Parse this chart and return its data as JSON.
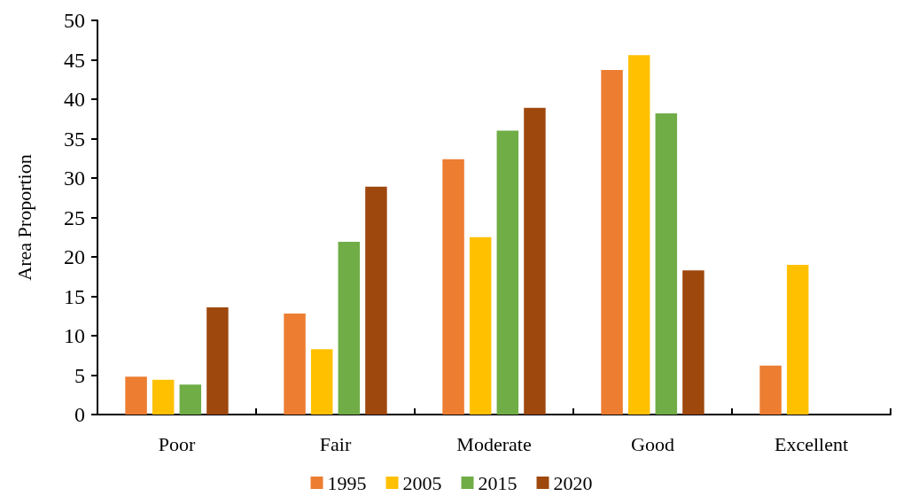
{
  "chart_data": {
    "type": "bar",
    "ylabel": "Area Proportion",
    "categories": [
      "Poor",
      "Fair",
      "Moderate",
      "Good",
      "Excellent"
    ],
    "series": [
      {
        "name": "1995",
        "color": "#ed7d31",
        "values": [
          4.8,
          12.8,
          32.4,
          43.7,
          6.2
        ]
      },
      {
        "name": "2005",
        "color": "#ffc000",
        "values": [
          4.4,
          8.3,
          22.5,
          45.6,
          19.0
        ]
      },
      {
        "name": "2015",
        "color": "#70ad47",
        "values": [
          3.8,
          21.9,
          36.0,
          38.2,
          null
        ]
      },
      {
        "name": "2020",
        "color": "#9e480e",
        "values": [
          13.6,
          28.9,
          38.9,
          18.3,
          null
        ]
      }
    ],
    "ylim": [
      0,
      50
    ],
    "yticks": [
      0,
      5,
      10,
      15,
      20,
      25,
      30,
      35,
      40,
      45,
      50
    ],
    "grid": false,
    "legend": "bottom"
  }
}
